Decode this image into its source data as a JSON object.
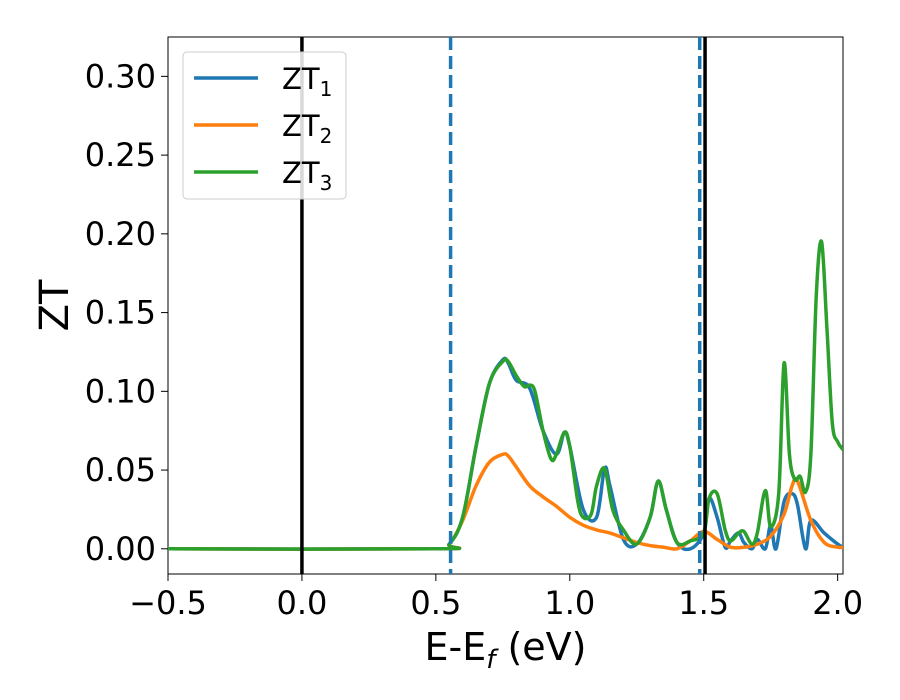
{
  "chart_data": {
    "type": "line",
    "title": "",
    "xlabel": "E-E",
    "xlabel_sub": "f",
    "xlabel_unit": " (eV)",
    "ylabel": "ZT",
    "xlim": [
      -0.5,
      2.02
    ],
    "ylim": [
      -0.016,
      0.325
    ],
    "xticks": [
      -0.5,
      0.0,
      0.5,
      1.0,
      1.5,
      2.0
    ],
    "xtick_labels": [
      "−0.5",
      "0.0",
      "0.5",
      "1.0",
      "1.5",
      "2.0"
    ],
    "yticks": [
      0.0,
      0.05,
      0.1,
      0.15,
      0.2,
      0.25,
      0.3
    ],
    "ytick_labels": [
      "0.00",
      "0.05",
      "0.10",
      "0.15",
      "0.20",
      "0.25",
      "0.30"
    ],
    "grid": false,
    "legend_position": "top-left",
    "vlines": [
      {
        "x": 0.0,
        "style": "solid",
        "color": "#000000"
      },
      {
        "x": 1.505,
        "style": "solid",
        "color": "#000000"
      },
      {
        "x": 0.555,
        "style": "dashed",
        "color": "#1f77b4"
      },
      {
        "x": 1.485,
        "style": "dashed",
        "color": "#1f77b4"
      }
    ],
    "series": [
      {
        "name": "ZT",
        "sub": "1",
        "color": "#1f77b4",
        "x": [
          -0.5,
          0.5,
          0.55,
          0.6,
          0.65,
          0.7,
          0.75,
          0.77,
          0.8,
          0.85,
          0.9,
          0.95,
          0.98,
          1.0,
          1.05,
          1.1,
          1.13,
          1.15,
          1.2,
          1.25,
          1.3,
          1.33,
          1.36,
          1.4,
          1.45,
          1.5,
          1.52,
          1.55,
          1.58,
          1.6,
          1.63,
          1.65,
          1.68,
          1.7,
          1.73,
          1.75,
          1.77,
          1.8,
          1.83,
          1.85,
          1.88,
          1.9,
          1.95,
          2.0,
          2.02
        ],
        "y": [
          0.0,
          0.0,
          0.003,
          0.02,
          0.065,
          0.105,
          0.12,
          0.118,
          0.107,
          0.102,
          0.075,
          0.06,
          0.074,
          0.065,
          0.025,
          0.02,
          0.051,
          0.04,
          0.006,
          0.003,
          0.02,
          0.043,
          0.025,
          0.004,
          0.0,
          0.01,
          0.032,
          0.02,
          0.001,
          0.005,
          0.01,
          0.004,
          0.0,
          0.006,
          0.0,
          0.015,
          0.0,
          0.03,
          0.035,
          0.028,
          0.0,
          0.018,
          0.01,
          0.003,
          0.001
        ]
      },
      {
        "name": "ZT",
        "sub": "2",
        "color": "#ff7f0e",
        "x": [
          -0.5,
          0.5,
          0.55,
          0.6,
          0.65,
          0.7,
          0.75,
          0.77,
          0.8,
          0.85,
          0.9,
          0.95,
          1.0,
          1.05,
          1.1,
          1.15,
          1.2,
          1.25,
          1.3,
          1.35,
          1.4,
          1.45,
          1.5,
          1.55,
          1.6,
          1.65,
          1.7,
          1.75,
          1.8,
          1.83,
          1.85,
          1.9,
          1.95,
          2.0,
          2.02
        ],
        "y": [
          0.0,
          0.0,
          0.003,
          0.018,
          0.04,
          0.055,
          0.06,
          0.059,
          0.052,
          0.04,
          0.033,
          0.027,
          0.02,
          0.015,
          0.012,
          0.01,
          0.007,
          0.004,
          0.002,
          0.001,
          0.0,
          0.005,
          0.011,
          0.006,
          0.001,
          0.001,
          0.003,
          0.008,
          0.022,
          0.04,
          0.043,
          0.018,
          0.004,
          0.001,
          0.001
        ]
      },
      {
        "name": "ZT",
        "sub": "3",
        "color": "#2ca02c",
        "x": [
          -0.5,
          0.5,
          0.55,
          0.6,
          0.65,
          0.7,
          0.75,
          0.77,
          0.8,
          0.83,
          0.85,
          0.87,
          0.9,
          0.93,
          0.95,
          0.98,
          1.0,
          1.03,
          1.05,
          1.08,
          1.1,
          1.13,
          1.16,
          1.2,
          1.25,
          1.3,
          1.33,
          1.36,
          1.4,
          1.45,
          1.5,
          1.52,
          1.55,
          1.58,
          1.6,
          1.63,
          1.65,
          1.68,
          1.7,
          1.73,
          1.75,
          1.78,
          1.8,
          1.82,
          1.84,
          1.86,
          1.88,
          1.9,
          1.92,
          1.94,
          1.96,
          1.98,
          2.0,
          2.02
        ],
        "y": [
          0.0,
          0.0,
          0.003,
          0.02,
          0.065,
          0.105,
          0.119,
          0.119,
          0.11,
          0.103,
          0.104,
          0.1,
          0.075,
          0.057,
          0.06,
          0.074,
          0.065,
          0.03,
          0.02,
          0.022,
          0.04,
          0.051,
          0.025,
          0.012,
          0.003,
          0.02,
          0.043,
          0.025,
          0.004,
          0.005,
          0.01,
          0.032,
          0.035,
          0.012,
          0.005,
          0.01,
          0.011,
          0.003,
          0.01,
          0.037,
          0.014,
          0.035,
          0.118,
          0.06,
          0.044,
          0.046,
          0.036,
          0.06,
          0.16,
          0.195,
          0.14,
          0.08,
          0.068,
          0.063
        ]
      }
    ]
  }
}
